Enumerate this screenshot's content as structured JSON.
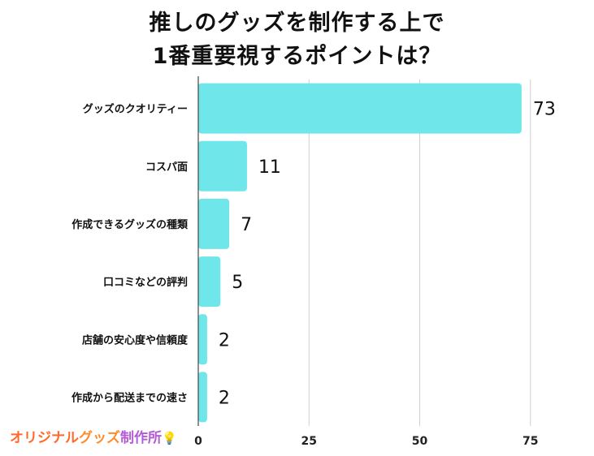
{
  "title_line1": "推しのグッズを制作する上で",
  "title_line2": "1番重要視するポイントは？",
  "logo": {
    "part1": "オリジナル",
    "part2": "グッズ",
    "part3": "制作所",
    "icon": "lightbulb-icon"
  },
  "colors": {
    "bar": "#6ee6ea",
    "grid": "#cfcfcf",
    "axis": "#444444"
  },
  "chart_data": {
    "type": "bar",
    "orientation": "horizontal",
    "title": "推しのグッズを制作する上で 1番重要視するポイントは？",
    "categories": [
      "グッズのクオリティー",
      "コスパ面",
      "作成できるグッズの種類",
      "口コミなどの評判",
      "店舗の安心度や信頼度",
      "作成から配送までの速さ"
    ],
    "values": [
      73,
      11,
      7,
      5,
      2,
      2
    ],
    "xlim": [
      0,
      80
    ],
    "xticks": [
      0,
      25,
      50,
      75
    ],
    "xlabel": "",
    "ylabel": "",
    "grid": true
  }
}
